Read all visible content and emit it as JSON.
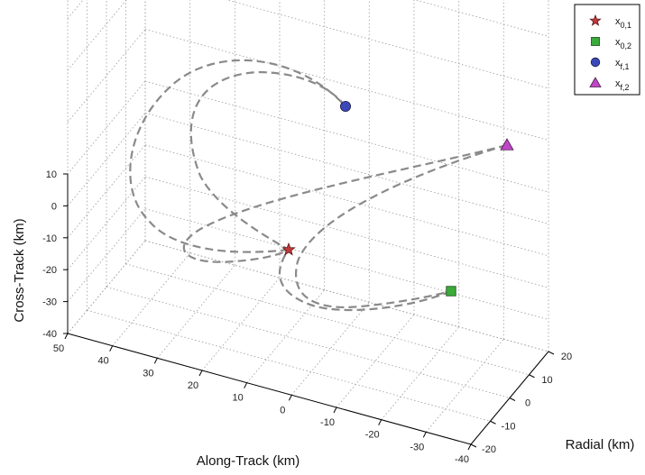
{
  "chart_data": {
    "type": "line3d",
    "title": "",
    "axes": {
      "along_track": {
        "label": "Along-Track (km)",
        "ticks": [
          50,
          40,
          30,
          20,
          10,
          0,
          -10,
          -20,
          -30,
          -40
        ]
      },
      "radial": {
        "label": "Radial (km)",
        "ticks": [
          20,
          10,
          0,
          -10,
          -20
        ]
      },
      "cross_track": {
        "label": "Cross-Track (km)",
        "ticks": [
          10,
          0,
          -10,
          -20,
          -30,
          -40
        ]
      }
    },
    "grid": true,
    "legend": {
      "placement": "top-right",
      "entries": [
        {
          "id": "x01",
          "base": "x",
          "sub": "0,1",
          "marker": "star",
          "color": "#c0393b"
        },
        {
          "id": "x02",
          "base": "x",
          "sub": "0,2",
          "marker": "square",
          "color": "#3aaa3a"
        },
        {
          "id": "xf1",
          "base": "x",
          "sub": "f,1",
          "marker": "circle",
          "color": "#3b48b8"
        },
        {
          "id": "xf2",
          "base": "x",
          "sub": "f,2",
          "marker": "triangle",
          "color": "#c046c8"
        }
      ]
    },
    "trajectory_color": "#8a8a8a"
  }
}
